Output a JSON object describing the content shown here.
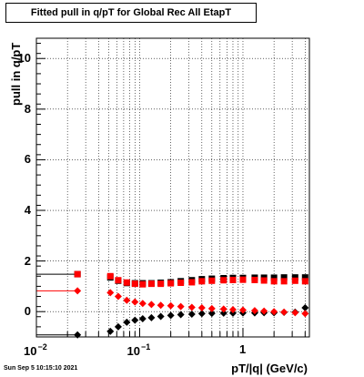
{
  "title": "Fitted pull in q/pT for Global Rec All EtapT",
  "timestamp": "Sun Sep  5 10:15:10 2021",
  "chart_data": {
    "type": "scatter",
    "title": "Fitted pull in q/pT for Global Rec All EtapT",
    "xlabel": "pT/|q| (GeV/c)",
    "ylabel": "pull in q/pT",
    "xscale": "log",
    "xlim": [
      0.01,
      4.4
    ],
    "ylim": [
      -1.0,
      10.8
    ],
    "grid": true,
    "x_ticks": [
      {
        "value": 0.01,
        "base": "10",
        "exp": "−2"
      },
      {
        "value": 0.1,
        "base": "10",
        "exp": "−1"
      },
      {
        "value": 1,
        "base": "1",
        "exp": ""
      }
    ],
    "y_ticks": [
      0,
      2,
      4,
      6,
      8,
      10
    ],
    "series": [
      {
        "color": "#000000",
        "marker": "square",
        "x": [
          0.025,
          0.052,
          0.062,
          0.075,
          0.09,
          0.107,
          0.13,
          0.16,
          0.2,
          0.25,
          0.32,
          0.4,
          0.5,
          0.65,
          0.8,
          1.0,
          1.3,
          1.6,
          2.0,
          2.5,
          3.2,
          4.0
        ],
        "y": [
          1.48,
          1.35,
          1.22,
          1.13,
          1.12,
          1.12,
          1.12,
          1.14,
          1.16,
          1.2,
          1.24,
          1.28,
          1.3,
          1.32,
          1.33,
          1.33,
          1.34,
          1.34,
          1.34,
          1.35,
          1.35,
          1.35
        ]
      },
      {
        "color": "#000000",
        "marker": "diamond",
        "x": [
          0.025,
          0.052,
          0.062,
          0.075,
          0.09,
          0.107,
          0.13,
          0.16,
          0.2,
          0.25,
          0.32,
          0.4,
          0.5,
          0.65,
          0.8,
          1.0,
          1.3,
          1.6,
          2.0,
          2.5,
          3.2,
          4.0
        ],
        "y": [
          -0.92,
          -0.78,
          -0.6,
          -0.42,
          -0.34,
          -0.28,
          -0.24,
          -0.19,
          -0.15,
          -0.12,
          -0.1,
          -0.08,
          -0.07,
          -0.06,
          -0.06,
          -0.05,
          -0.05,
          -0.04,
          -0.04,
          -0.03,
          -0.02,
          0.15
        ]
      },
      {
        "color": "#ff0000",
        "marker": "square",
        "x": [
          0.025,
          0.052,
          0.062,
          0.075,
          0.09,
          0.107,
          0.13,
          0.16,
          0.2,
          0.25,
          0.32,
          0.4,
          0.5,
          0.65,
          0.8,
          1.0,
          1.3,
          1.6,
          2.0,
          2.5,
          3.2,
          4.0
        ],
        "y": [
          1.48,
          1.4,
          1.24,
          1.15,
          1.1,
          1.08,
          1.1,
          1.1,
          1.12,
          1.14,
          1.16,
          1.2,
          1.22,
          1.24,
          1.25,
          1.26,
          1.25,
          1.23,
          1.2,
          1.2,
          1.22,
          1.2
        ]
      },
      {
        "color": "#ff0000",
        "marker": "diamond",
        "x": [
          0.025,
          0.052,
          0.062,
          0.075,
          0.09,
          0.107,
          0.13,
          0.16,
          0.2,
          0.25,
          0.32,
          0.4,
          0.5,
          0.65,
          0.8,
          1.0,
          1.3,
          1.6,
          2.0,
          2.5,
          3.2,
          4.0
        ],
        "y": [
          0.82,
          0.75,
          0.6,
          0.45,
          0.38,
          0.32,
          0.28,
          0.25,
          0.23,
          0.2,
          0.17,
          0.15,
          0.12,
          0.1,
          0.08,
          0.06,
          0.04,
          0.02,
          0.0,
          -0.02,
          -0.04,
          -0.08
        ]
      }
    ],
    "tails": [
      {
        "color": "#000000",
        "y": 1.48
      },
      {
        "color": "#ff0000",
        "y": 0.82
      },
      {
        "color": "#000000",
        "y": -0.92
      }
    ]
  }
}
